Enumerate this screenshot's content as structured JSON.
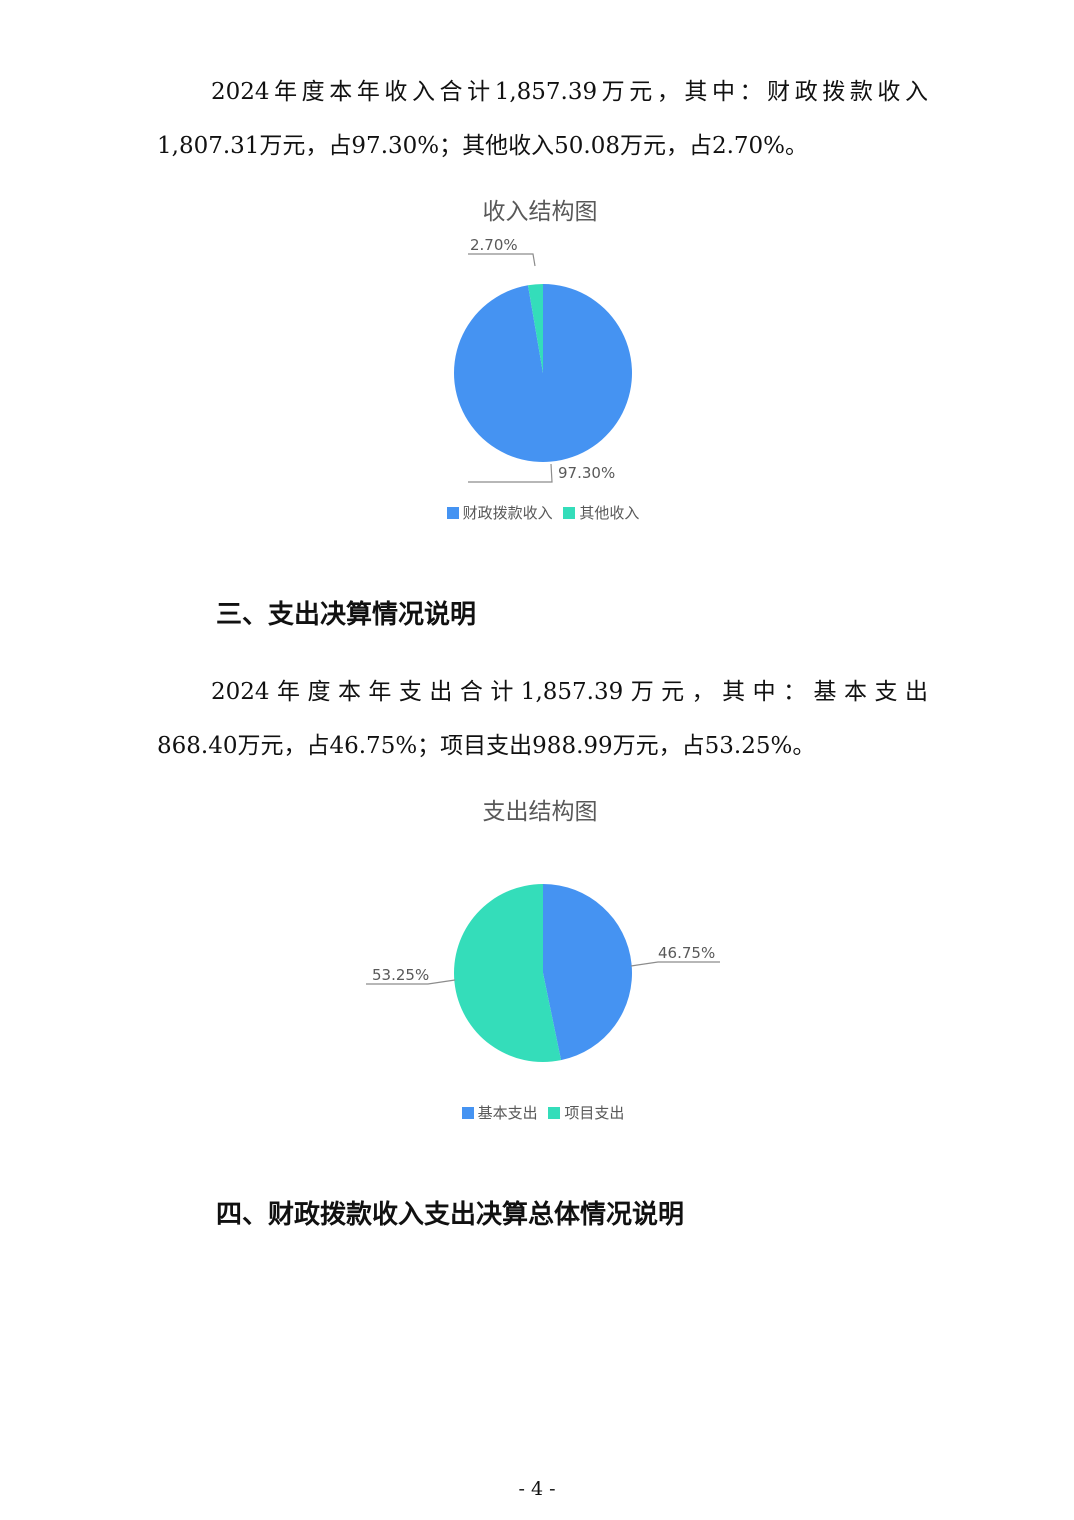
{
  "income_paragraph": {
    "line1": "2024年度本年收入合计1,857.39万元，其中：财政拨款收入",
    "line2": "1,807.31万元，占97.30%；其他收入50.08万元，占2.70%。"
  },
  "section3_heading": "三、支出决算情况说明",
  "expense_paragraph": {
    "line1": "2024年度本年支出合计1,857.39万元，其中：基本支出",
    "line2": "868.40万元，占46.75%；项目支出988.99万元，占53.25%。"
  },
  "section4_heading": "四、财政拨款收入支出决算总体情况说明",
  "page_number": "- 4 -",
  "chart_data": [
    {
      "type": "pie",
      "title": "收入结构图",
      "legend_position": "bottom",
      "series": [
        {
          "name": "财政拨款收入",
          "value": 97.3,
          "label": "97.30%",
          "color": "#4593F2"
        },
        {
          "name": "其他收入",
          "value": 2.7,
          "label": "2.70%",
          "color": "#34DDBA"
        }
      ]
    },
    {
      "type": "pie",
      "title": "支出结构图",
      "legend_position": "bottom",
      "series": [
        {
          "name": "基本支出",
          "value": 46.75,
          "label": "46.75%",
          "color": "#4593F2"
        },
        {
          "name": "项目支出",
          "value": 53.25,
          "label": "53.25%",
          "color": "#34DDBA"
        }
      ]
    }
  ]
}
